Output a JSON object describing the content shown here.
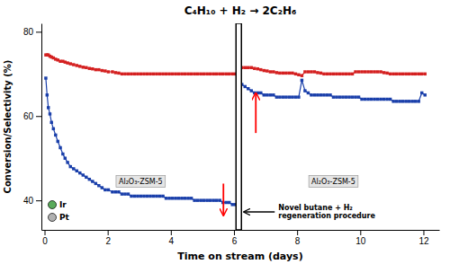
{
  "chart_data": {
    "type": "line",
    "title": "C₄H₁₀ + H₂ → 2C₂H₆",
    "x_label": "Time on stream (days)",
    "y_label": "Conversion/Selectivity (%)",
    "xlim": [
      -0.1,
      12.5
    ],
    "ylim": [
      33,
      82
    ],
    "xticks": [
      0,
      2,
      4,
      6,
      8,
      10,
      12
    ],
    "yticks": [
      40,
      60,
      80
    ],
    "grid": false,
    "marker": "square",
    "line_style": "solid",
    "divider_x": 6.15,
    "series": [
      {
        "color": "#d42020",
        "x": [
          0.04,
          0.08,
          0.12,
          0.17,
          0.22,
          0.28,
          0.35,
          0.42,
          0.5,
          0.58,
          0.65,
          0.73,
          0.82,
          0.92,
          1.02,
          1.12,
          1.22,
          1.32,
          1.42,
          1.52,
          1.62,
          1.72,
          1.82,
          1.92,
          2.02,
          2.15,
          2.25,
          2.35,
          2.45,
          2.55,
          2.65,
          2.75,
          2.85,
          2.95,
          3.05,
          3.15,
          3.25,
          3.35,
          3.45,
          3.55,
          3.65,
          3.75,
          3.85,
          3.95,
          4.05,
          4.15,
          4.25,
          4.35,
          4.45,
          4.55,
          4.65,
          4.75,
          4.85,
          4.95,
          5.05,
          5.15,
          5.25,
          5.35,
          5.45,
          5.55,
          5.65,
          5.75,
          5.85,
          5.95,
          6.05
        ],
        "values": [
          74.5,
          74.5,
          74.5,
          74.2,
          74.0,
          73.8,
          73.5,
          73.3,
          73.0,
          73.0,
          72.8,
          72.6,
          72.4,
          72.2,
          72.0,
          71.8,
          71.6,
          71.5,
          71.3,
          71.2,
          71.0,
          71.0,
          70.8,
          70.7,
          70.5,
          70.5,
          70.3,
          70.2,
          70.0,
          70.0,
          70.0,
          70.0,
          70.0,
          70.0,
          70.0,
          70.0,
          70.0,
          70.0,
          70.0,
          70.0,
          70.0,
          70.0,
          70.0,
          70.0,
          70.0,
          70.0,
          70.0,
          70.0,
          70.0,
          70.0,
          70.0,
          70.0,
          70.0,
          70.0,
          70.0,
          70.0,
          70.0,
          70.0,
          70.0,
          70.0,
          70.0,
          70.0,
          70.0,
          70.0,
          70.0
        ]
      },
      {
        "color": "#d42020",
        "x": [
          6.25,
          6.35,
          6.45,
          6.55,
          6.65,
          6.75,
          6.85,
          6.95,
          7.05,
          7.15,
          7.25,
          7.35,
          7.45,
          7.55,
          7.65,
          7.75,
          7.85,
          7.95,
          8.05,
          8.15,
          8.25,
          8.35,
          8.45,
          8.55,
          8.65,
          8.75,
          8.85,
          8.95,
          9.05,
          9.15,
          9.25,
          9.35,
          9.45,
          9.55,
          9.65,
          9.75,
          9.85,
          9.95,
          10.05,
          10.15,
          10.25,
          10.35,
          10.45,
          10.55,
          10.65,
          10.75,
          10.85,
          10.95,
          11.05,
          11.15,
          11.25,
          11.35,
          11.45,
          11.55,
          11.65,
          11.75,
          11.85,
          11.95,
          12.05
        ],
        "values": [
          71.5,
          71.5,
          71.5,
          71.5,
          71.3,
          71.2,
          71.0,
          70.8,
          70.7,
          70.5,
          70.5,
          70.3,
          70.2,
          70.2,
          70.2,
          70.2,
          70.2,
          70.0,
          69.8,
          69.6,
          70.5,
          70.5,
          70.5,
          70.5,
          70.3,
          70.2,
          70.0,
          70.0,
          70.0,
          70.0,
          70.0,
          70.0,
          70.0,
          70.0,
          70.0,
          70.0,
          70.5,
          70.5,
          70.5,
          70.5,
          70.5,
          70.5,
          70.5,
          70.5,
          70.5,
          70.3,
          70.2,
          70.0,
          70.0,
          70.0,
          70.0,
          70.0,
          70.0,
          70.0,
          70.0,
          70.0,
          70.0,
          70.0,
          70.0
        ]
      },
      {
        "color": "#1a3faa",
        "x": [
          0.04,
          0.08,
          0.12,
          0.17,
          0.22,
          0.28,
          0.35,
          0.42,
          0.5,
          0.58,
          0.65,
          0.73,
          0.82,
          0.92,
          1.02,
          1.12,
          1.22,
          1.32,
          1.42,
          1.52,
          1.62,
          1.72,
          1.82,
          1.92,
          2.02,
          2.15,
          2.25,
          2.35,
          2.45,
          2.55,
          2.65,
          2.75,
          2.85,
          2.95,
          3.05,
          3.15,
          3.25,
          3.35,
          3.45,
          3.55,
          3.65,
          3.75,
          3.85,
          3.95,
          4.05,
          4.15,
          4.25,
          4.35,
          4.45,
          4.55,
          4.65,
          4.75,
          4.85,
          4.95,
          5.05,
          5.15,
          5.25,
          5.35,
          5.45,
          5.55,
          5.65,
          5.75,
          5.85,
          5.95,
          6.05
        ],
        "values": [
          69.0,
          65.0,
          62.0,
          60.5,
          58.5,
          57.0,
          55.5,
          54.0,
          52.5,
          51.0,
          50.0,
          49.0,
          48.0,
          47.5,
          47.0,
          46.5,
          46.0,
          45.5,
          45.0,
          44.5,
          44.0,
          43.5,
          43.0,
          42.5,
          42.5,
          42.0,
          42.0,
          42.0,
          41.5,
          41.5,
          41.5,
          41.0,
          41.0,
          41.0,
          41.0,
          41.0,
          41.0,
          41.0,
          41.0,
          41.0,
          41.0,
          41.0,
          40.5,
          40.5,
          40.5,
          40.5,
          40.5,
          40.5,
          40.5,
          40.5,
          40.5,
          40.0,
          40.0,
          40.0,
          40.0,
          40.0,
          40.0,
          40.0,
          40.0,
          40.0,
          39.5,
          39.5,
          39.5,
          39.0,
          39.0
        ]
      },
      {
        "color": "#1a3faa",
        "x": [
          6.25,
          6.35,
          6.45,
          6.55,
          6.65,
          6.75,
          6.85,
          6.95,
          7.05,
          7.15,
          7.25,
          7.35,
          7.45,
          7.55,
          7.65,
          7.75,
          7.85,
          7.95,
          8.05,
          8.15,
          8.25,
          8.35,
          8.45,
          8.55,
          8.65,
          8.75,
          8.85,
          8.95,
          9.05,
          9.15,
          9.25,
          9.35,
          9.45,
          9.55,
          9.65,
          9.75,
          9.85,
          9.95,
          10.05,
          10.15,
          10.25,
          10.35,
          10.45,
          10.55,
          10.65,
          10.75,
          10.85,
          10.95,
          11.05,
          11.15,
          11.25,
          11.35,
          11.45,
          11.55,
          11.65,
          11.75,
          11.85,
          11.95,
          12.05
        ],
        "values": [
          67.5,
          67.0,
          66.5,
          66.0,
          65.5,
          65.5,
          65.5,
          65.0,
          65.0,
          65.0,
          65.0,
          64.5,
          64.5,
          64.5,
          64.5,
          64.5,
          64.5,
          64.5,
          64.5,
          68.5,
          66.0,
          65.5,
          65.0,
          65.0,
          65.0,
          65.0,
          65.0,
          65.0,
          65.0,
          64.5,
          64.5,
          64.5,
          64.5,
          64.5,
          64.5,
          64.5,
          64.5,
          64.5,
          64.0,
          64.0,
          64.0,
          64.0,
          64.0,
          64.0,
          64.0,
          64.0,
          64.0,
          64.0,
          63.5,
          63.5,
          63.5,
          63.5,
          63.5,
          63.5,
          63.5,
          63.5,
          63.5,
          65.5,
          65.0
        ]
      }
    ],
    "annotations": [
      {
        "text": "Al₂O₃-ZSM-5"
      },
      {
        "text": "Al₂O₃-ZSM-5"
      },
      {
        "text": "Novel butane + H₂\nregeneration procedure"
      },
      {
        "text": "Ir",
        "color": "#5aaa5a"
      },
      {
        "text": "Pt",
        "color": "#b0b0b0"
      }
    ]
  }
}
